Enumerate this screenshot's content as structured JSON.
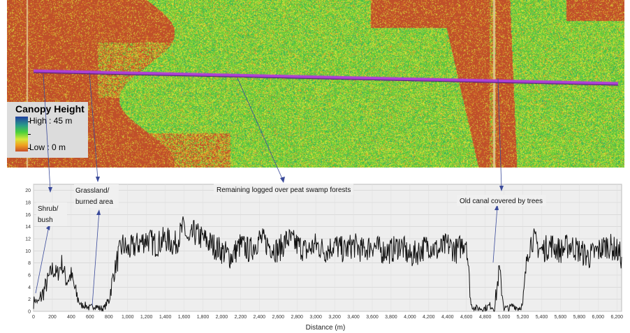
{
  "legend": {
    "title": "Canopy Height",
    "high_label": "High : 45 m",
    "low_label": "Low : 0 m",
    "colors": [
      "#1f3f9f",
      "#2a9a8a",
      "#4cd13a",
      "#d8e83a",
      "#f0a020",
      "#c8502a"
    ]
  },
  "map_colors": {
    "bare": "#c0502a",
    "forest": "#5cc83a",
    "transect": "#b040d8"
  },
  "chart_data": {
    "type": "line",
    "title": "",
    "xlabel": "Distance (m)",
    "ylabel": "",
    "xlim": [
      0,
      6250
    ],
    "ylim": [
      0,
      21
    ],
    "grid": true,
    "x_ticks": [
      0,
      200,
      400,
      600,
      800,
      1000,
      1200,
      1400,
      1600,
      1800,
      2000,
      2200,
      2400,
      2600,
      2800,
      3000,
      3200,
      3400,
      3600,
      3800,
      4000,
      4200,
      4400,
      4600,
      4800,
      5000,
      5200,
      5400,
      5600,
      5800,
      6000,
      6200
    ],
    "x_tick_labels": [
      "0",
      "200",
      "400",
      "600",
      "800",
      "1,000",
      "1,200",
      "1,400",
      "1,600",
      "1,800",
      "2,000",
      "2,200",
      "2,400",
      "2,600",
      "2,800",
      "3,000",
      "3,200",
      "3,400",
      "3,600",
      "3,800",
      "4,000",
      "4,200",
      "4,400",
      "4,600",
      "4,800",
      "5,000",
      "5,200",
      "5,400",
      "5,600",
      "5,800",
      "6,000",
      "6,200"
    ],
    "y_ticks": [
      0,
      2,
      4,
      6,
      8,
      10,
      12,
      14,
      16,
      18,
      20
    ],
    "series": [
      {
        "x": [
          0,
          50,
          100,
          150,
          200,
          250,
          300,
          350,
          400,
          450,
          500,
          550,
          600,
          650,
          700,
          750,
          800,
          850,
          900,
          950,
          1000,
          1100,
          1200,
          1300,
          1400,
          1500,
          1600,
          1650,
          1700,
          1800,
          1900,
          2000,
          2100,
          2200,
          2300,
          2400,
          2500,
          2600,
          2700,
          2800,
          2900,
          3000,
          3100,
          3200,
          3300,
          3400,
          3500,
          3600,
          3700,
          3800,
          3900,
          4000,
          4100,
          4200,
          4300,
          4400,
          4500,
          4550,
          4600,
          4650,
          4700,
          4750,
          4800,
          4850,
          4900,
          4950,
          5000,
          5050,
          5100,
          5150,
          5200,
          5250,
          5300,
          5350,
          5400,
          5500,
          5600,
          5700,
          5800,
          5900,
          6000,
          6100,
          6200,
          6250
        ],
        "y": [
          2,
          1.5,
          3,
          5,
          7,
          6,
          8,
          5,
          6,
          3,
          1,
          1,
          0.5,
          1,
          0.5,
          0.5,
          2,
          6,
          9,
          11,
          10,
          11,
          12,
          11,
          12,
          11,
          14,
          11,
          13,
          12,
          11,
          10,
          9,
          11,
          10,
          12,
          11,
          10,
          12,
          11,
          10,
          11,
          10,
          11,
          10,
          11,
          10,
          11,
          10,
          10,
          11,
          9,
          10,
          11,
          10,
          11,
          10,
          11,
          12,
          1,
          0.5,
          0.5,
          0.5,
          1,
          0.5,
          7,
          0.5,
          0.5,
          1,
          0.5,
          1,
          10,
          12,
          11,
          10,
          11,
          10,
          11,
          10,
          9,
          10,
          11,
          10,
          9
        ]
      }
    ]
  },
  "annotations": [
    {
      "label": "Shrub/",
      "label2": "bush"
    },
    {
      "label": "Grassland/",
      "label2": "burned area"
    },
    {
      "label": "Remaining logged over peat swamp forests",
      "label2": ""
    },
    {
      "label": "Old canal covered by trees",
      "label2": ""
    }
  ]
}
